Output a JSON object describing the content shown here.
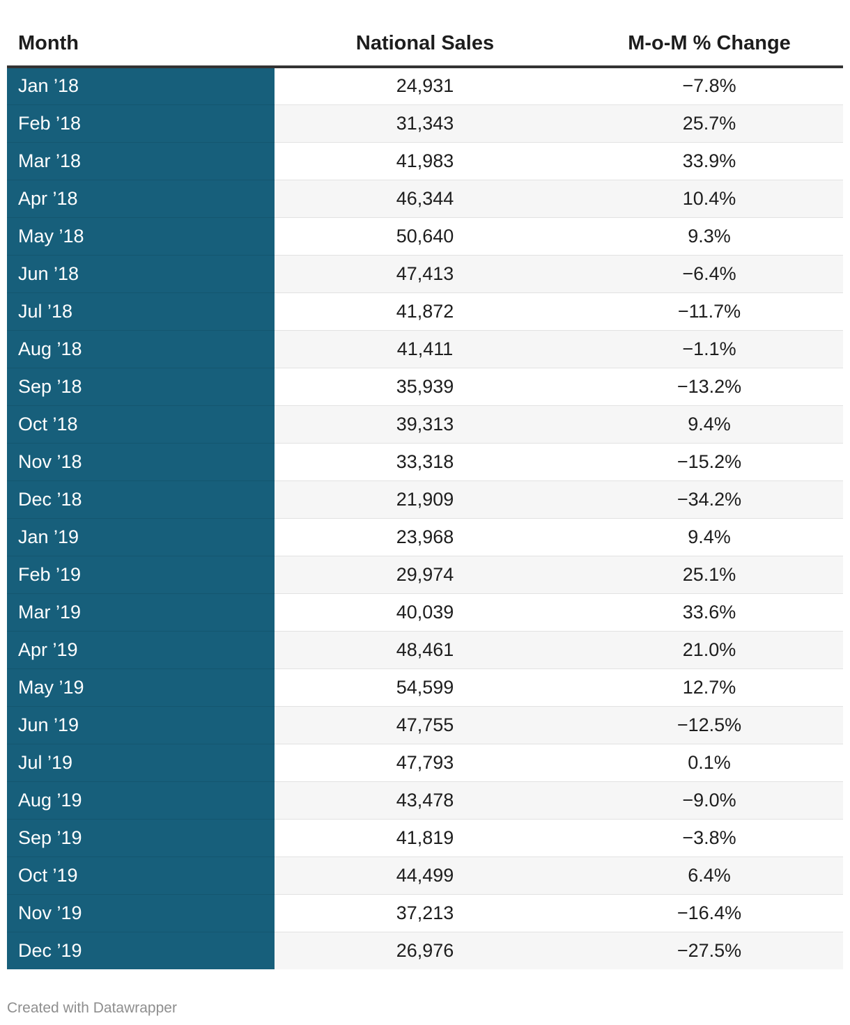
{
  "chart_data": {
    "type": "table",
    "columns": [
      "Month",
      "National Sales",
      "M-o-M % Change"
    ],
    "rows": [
      {
        "month": "Jan ’18",
        "sales": "24,931",
        "change": "−7.8%"
      },
      {
        "month": "Feb ’18",
        "sales": "31,343",
        "change": "25.7%"
      },
      {
        "month": "Mar ’18",
        "sales": "41,983",
        "change": "33.9%"
      },
      {
        "month": "Apr ’18",
        "sales": "46,344",
        "change": "10.4%"
      },
      {
        "month": "May ’18",
        "sales": "50,640",
        "change": "9.3%"
      },
      {
        "month": "Jun ’18",
        "sales": "47,413",
        "change": "−6.4%"
      },
      {
        "month": "Jul ’18",
        "sales": "41,872",
        "change": "−11.7%"
      },
      {
        "month": "Aug ’18",
        "sales": "41,411",
        "change": "−1.1%"
      },
      {
        "month": "Sep ’18",
        "sales": "35,939",
        "change": "−13.2%"
      },
      {
        "month": "Oct ’18",
        "sales": "39,313",
        "change": "9.4%"
      },
      {
        "month": "Nov ’18",
        "sales": "33,318",
        "change": "−15.2%"
      },
      {
        "month": "Dec ’18",
        "sales": "21,909",
        "change": "−34.2%"
      },
      {
        "month": "Jan ’19",
        "sales": "23,968",
        "change": "9.4%"
      },
      {
        "month": "Feb ’19",
        "sales": "29,974",
        "change": "25.1%"
      },
      {
        "month": "Mar ’19",
        "sales": "40,039",
        "change": "33.6%"
      },
      {
        "month": "Apr ’19",
        "sales": "48,461",
        "change": "21.0%"
      },
      {
        "month": "May ’19",
        "sales": "54,599",
        "change": "12.7%"
      },
      {
        "month": "Jun ’19",
        "sales": "47,755",
        "change": "−12.5%"
      },
      {
        "month": "Jul ’19",
        "sales": "47,793",
        "change": "0.1%"
      },
      {
        "month": "Aug ’19",
        "sales": "43,478",
        "change": "−9.0%"
      },
      {
        "month": "Sep ’19",
        "sales": "41,819",
        "change": "−3.8%"
      },
      {
        "month": "Oct ’19",
        "sales": "44,499",
        "change": "6.4%"
      },
      {
        "month": "Nov ’19",
        "sales": "37,213",
        "change": "−16.4%"
      },
      {
        "month": "Dec ’19",
        "sales": "26,976",
        "change": "−27.5%"
      }
    ]
  },
  "footer": {
    "credit": "Created with Datawrapper"
  },
  "colors": {
    "month_column_bg": "#175f7b",
    "month_column_text": "#ffffff",
    "header_rule": "#333333",
    "alt_row_bg": "#f6f6f6",
    "footer_text": "#8e8e8e"
  }
}
